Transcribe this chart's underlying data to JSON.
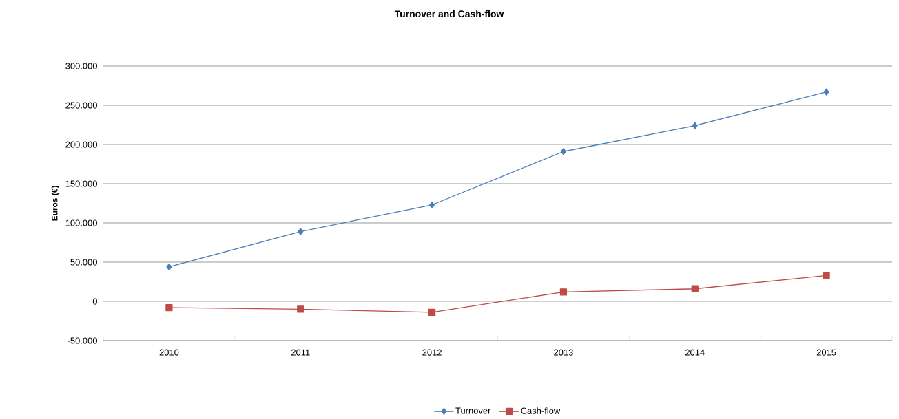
{
  "chart_data": {
    "type": "line",
    "title": "Turnover and Cash-flow",
    "ylabel": "Euros (€)",
    "categories": [
      "2010",
      "2011",
      "2012",
      "2013",
      "2014",
      "2015"
    ],
    "series": [
      {
        "name": "Turnover",
        "color": "#4a7ebb",
        "marker": "diamond",
        "values": [
          44000,
          89000,
          123000,
          191000,
          224000,
          267000
        ]
      },
      {
        "name": "Cash-flow",
        "color": "#be4b48",
        "marker": "square",
        "values": [
          -8000,
          -10000,
          -14000,
          12000,
          16000,
          33000
        ]
      }
    ],
    "ylim": [
      -50000,
      300000
    ],
    "yticks": [
      {
        "value": -50000,
        "label": "-50.000"
      },
      0,
      {
        "value": 50000,
        "label": "50.000"
      },
      {
        "value": 100000,
        "label": "100.000"
      },
      {
        "value": 150000,
        "label": "150.000"
      },
      {
        "value": 200000,
        "label": "200.000"
      },
      {
        "value": 250000,
        "label": "250.000"
      },
      {
        "value": 300000,
        "label": "300.000"
      }
    ],
    "grid": "y",
    "legend": "bottom",
    "line_style": "solid"
  }
}
